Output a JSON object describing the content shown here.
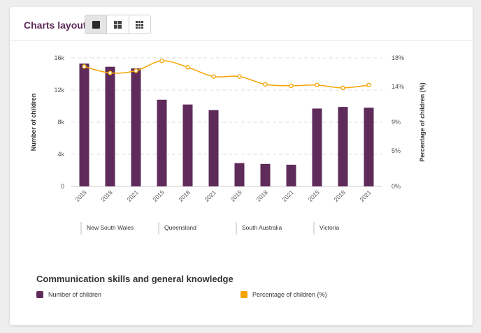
{
  "toolbar": {
    "label": "Charts layout:",
    "buttons": [
      {
        "icon": "single-chart-layout-icon",
        "active": true
      },
      {
        "icon": "four-chart-layout-icon",
        "active": false
      },
      {
        "icon": "nine-chart-layout-icon",
        "active": false
      }
    ]
  },
  "chart_data": {
    "type": "bar",
    "title": "Communication skills and general knowledge",
    "ylabel": "Number of children",
    "y2label": "Percentage of children (%)",
    "ylim": [
      0,
      16000
    ],
    "y2lim": [
      0,
      18
    ],
    "yticks": [
      0,
      4000,
      8000,
      12000,
      16000
    ],
    "yticklabels": [
      "0",
      "4k",
      "8k",
      "12k",
      "16k"
    ],
    "y2ticks": [
      0,
      5,
      9,
      14,
      18
    ],
    "y2ticklabels": [
      "0%",
      "5%",
      "9%",
      "14%",
      "18%"
    ],
    "grid": true,
    "legend_position": "bottom",
    "groups": [
      "New South Wales",
      "Queensland",
      "South Australia",
      "Victoria"
    ],
    "categories": [
      "2015",
      "2018",
      "2021",
      "2015",
      "2018",
      "2021",
      "2015",
      "2018",
      "2021",
      "2015",
      "2018",
      "2021"
    ],
    "series": [
      {
        "name": "Number of children",
        "type": "bar",
        "axis": "left",
        "color": "#5e2b5a",
        "values": [
          15300,
          14900,
          14700,
          10800,
          10200,
          9500,
          2900,
          2800,
          2700,
          9700,
          9900,
          9800
        ]
      },
      {
        "name": "Percentage of children (%)",
        "type": "line",
        "axis": "right",
        "color": "#f5a300",
        "values": [
          16.8,
          15.9,
          16.2,
          17.6,
          16.7,
          15.4,
          15.4,
          14.3,
          14.1,
          14.2,
          13.8,
          14.2
        ]
      }
    ]
  }
}
